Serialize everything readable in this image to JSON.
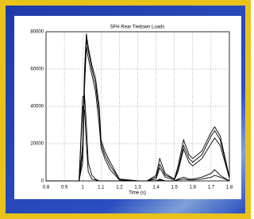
{
  "chart_data": {
    "type": "line",
    "title": "SFH Rear Tiedown Loads",
    "xlabel": "Time (s)",
    "x": [
      0.8,
      0.95,
      0.98,
      1.0,
      1.01,
      1.02,
      1.03,
      1.05,
      1.07,
      1.09,
      1.1,
      1.12,
      1.15,
      1.2,
      1.3,
      1.35,
      1.4,
      1.42,
      1.45,
      1.5,
      1.52,
      1.55,
      1.58,
      1.6,
      1.65,
      1.7,
      1.72,
      1.75,
      1.8
    ],
    "series": [
      {
        "color": "#000000",
        "values": [
          0,
          0,
          0,
          20000,
          60000,
          79000,
          72000,
          62000,
          55000,
          40000,
          22000,
          16000,
          10000,
          1000,
          0,
          0,
          3000,
          12000,
          4000,
          1000,
          8000,
          22000,
          14000,
          12000,
          16000,
          26000,
          29000,
          24000,
          2000
        ]
      },
      {
        "color": "#000000",
        "values": [
          0,
          0,
          0,
          15000,
          55000,
          76000,
          70000,
          60000,
          52000,
          36000,
          20000,
          14000,
          8000,
          1000,
          0,
          0,
          2000,
          9000,
          3000,
          1000,
          6000,
          19000,
          12000,
          10000,
          14000,
          24000,
          27000,
          22000,
          2000
        ]
      },
      {
        "color": "#000000",
        "values": [
          0,
          0,
          0,
          10000,
          50000,
          72000,
          66000,
          57000,
          48000,
          30000,
          18000,
          12000,
          6000,
          500,
          0,
          0,
          1000,
          7000,
          2000,
          500,
          5000,
          17000,
          10000,
          8000,
          12000,
          20000,
          23000,
          19000,
          1500
        ]
      },
      {
        "color": "#000000",
        "values": [
          0,
          0,
          0,
          45000,
          46000,
          30000,
          10000,
          3000,
          1000,
          0,
          0,
          0,
          0,
          0,
          0,
          0,
          0,
          1000,
          0,
          0,
          1000,
          2000,
          1000,
          1000,
          2000,
          4000,
          6000,
          3000,
          0
        ]
      },
      {
        "color": "#000000",
        "values": [
          0,
          0,
          0,
          40000,
          38000,
          20000,
          5000,
          1000,
          500,
          0,
          0,
          0,
          0,
          0,
          0,
          0,
          0,
          500,
          0,
          0,
          500,
          1000,
          500,
          500,
          1000,
          2000,
          3000,
          2000,
          0
        ]
      }
    ],
    "xlim": [
      0.8,
      1.8
    ],
    "xticks": [
      0.8,
      0.9,
      1,
      1.1,
      1.2,
      1.3,
      1.4,
      1.5,
      1.6,
      1.7,
      1.8
    ],
    "ylim": [
      0,
      80000
    ],
    "yticks": [
      0,
      20000,
      40000,
      60000,
      80000
    ],
    "grid": true
  }
}
